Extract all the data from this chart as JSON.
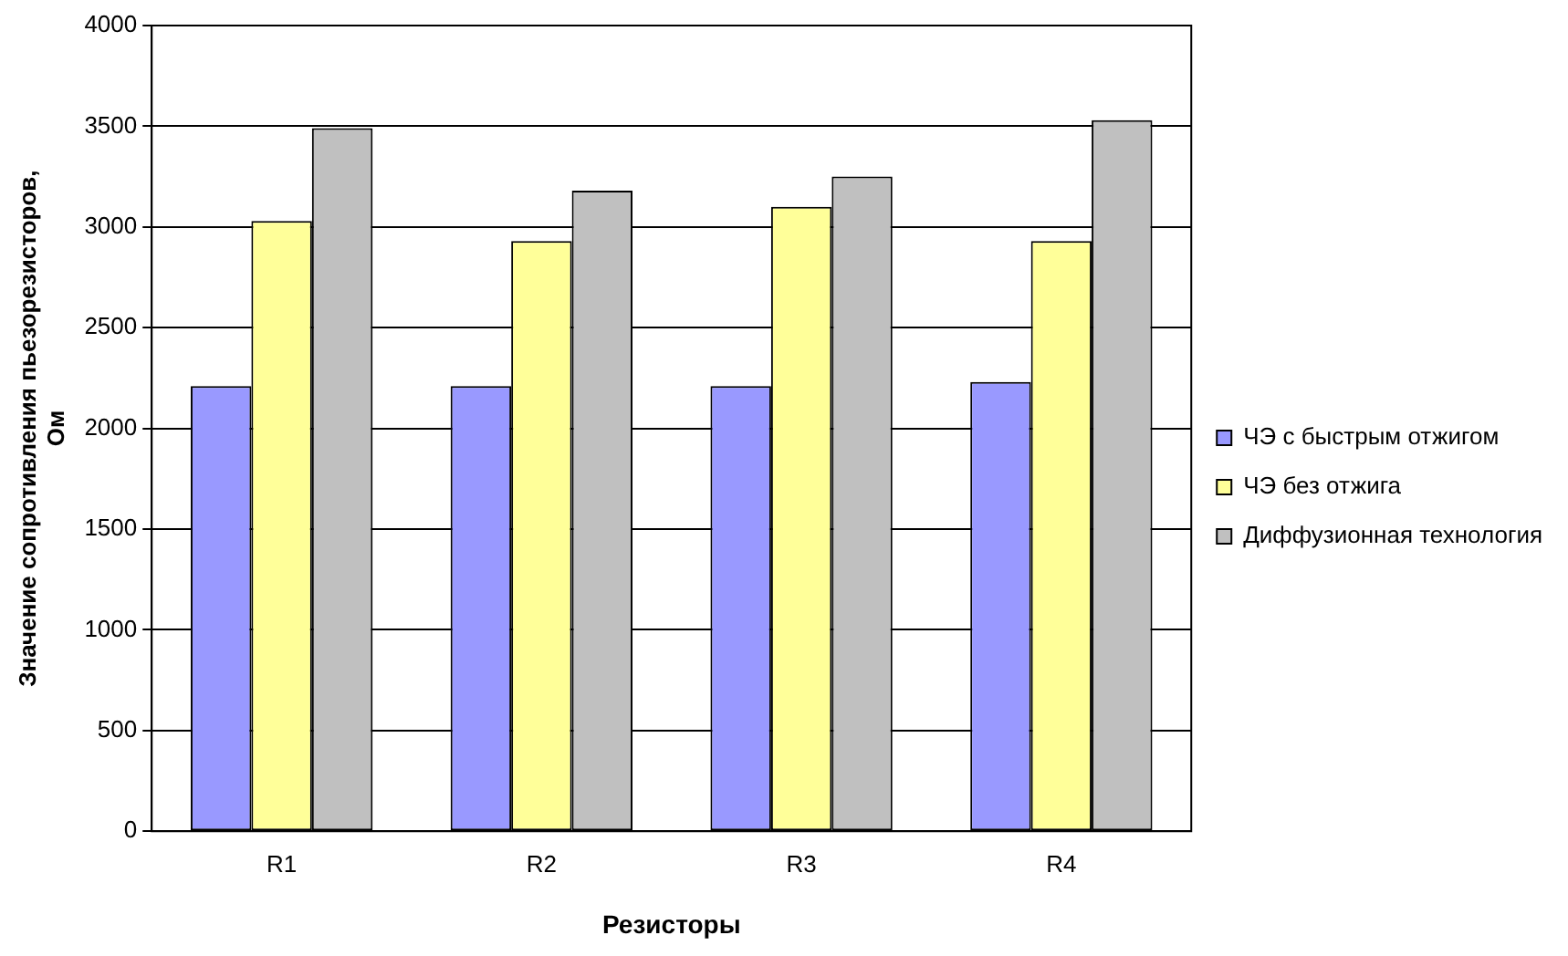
{
  "chart_data": {
    "type": "bar",
    "xlabel": "Резисторы",
    "ylabel": "Значение сопротивления пьезорезисторов,\nОм",
    "categories": [
      "R1",
      "R2",
      "R3",
      "R4"
    ],
    "series": [
      {
        "name": "ЧЭ с быстрым отжигом",
        "color": "#9999ff",
        "values": [
          2210,
          2210,
          2210,
          2230
        ]
      },
      {
        "name": "ЧЭ без отжига",
        "color": "#ffff99",
        "values": [
          3030,
          2930,
          3100,
          2930
        ]
      },
      {
        "name": "Диффузионная технология",
        "color": "#c0c0c0",
        "values": [
          3490,
          3180,
          3250,
          3530
        ]
      }
    ],
    "ylim": [
      0,
      4000
    ],
    "yticks": [
      0,
      500,
      1000,
      1500,
      2000,
      2500,
      3000,
      3500,
      4000
    ],
    "grid": "y",
    "legend": "right"
  }
}
